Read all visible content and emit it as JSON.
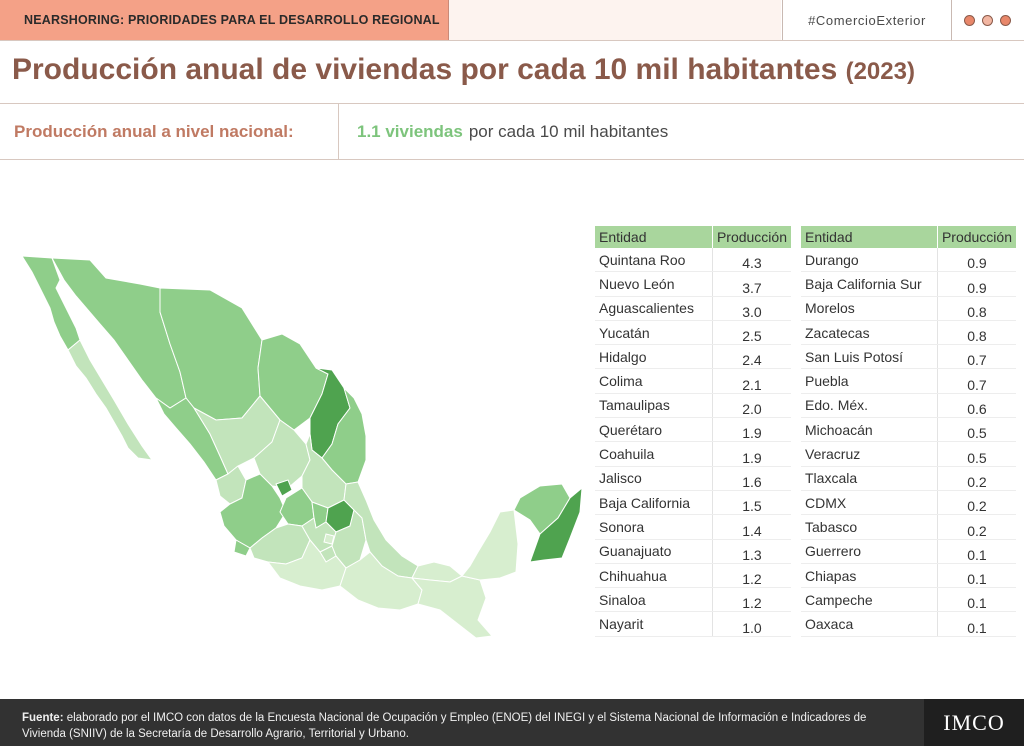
{
  "header": {
    "tag": "NEARSHORING: PRIORIDADES PARA EL DESARROLLO REGIONAL",
    "hashtag": "#ComercioExterior",
    "dots": [
      {
        "name": "dot-1",
        "color": "#e8876a"
      },
      {
        "name": "dot-2",
        "color": "#f2b6a2"
      },
      {
        "name": "dot-3",
        "color": "#e8876a"
      }
    ]
  },
  "title": {
    "main": "Producción anual de viviendas por cada 10 mil habitantes",
    "year": "(2023)"
  },
  "national": {
    "label": "Producción anual a nivel nacional:",
    "value": "1.1 viviendas",
    "unit": "por cada 10 mil habitantes"
  },
  "colors": {
    "header_accent": "#f4a187",
    "title": "#8a5a4a",
    "national_label": "#c07a63",
    "national_value": "#7dc47c",
    "table_header": "#a9d69d",
    "map_dark": "#4fa34f",
    "map_mid": "#8fce8a",
    "map_light": "#c2e4bb",
    "map_pale": "#d7eecf",
    "footer_bg": "#323232"
  },
  "chart_data": {
    "type": "table",
    "columns": [
      "Entidad",
      "Producción"
    ],
    "rows": [
      [
        "Quintana Roo",
        4.3
      ],
      [
        "Nuevo León",
        3.7
      ],
      [
        "Aguascalientes",
        3.0
      ],
      [
        "Yucatán",
        2.5
      ],
      [
        "Hidalgo",
        2.4
      ],
      [
        "Colima",
        2.1
      ],
      [
        "Tamaulipas",
        2.0
      ],
      [
        "Querétaro",
        1.9
      ],
      [
        "Coahuila",
        1.9
      ],
      [
        "Jalisco",
        1.6
      ],
      [
        "Baja California",
        1.5
      ],
      [
        "Sonora",
        1.4
      ],
      [
        "Guanajuato",
        1.3
      ],
      [
        "Chihuahua",
        1.2
      ],
      [
        "Sinaloa",
        1.2
      ],
      [
        "Nayarit",
        1.0
      ],
      [
        "Durango",
        0.9
      ],
      [
        "Baja California Sur",
        0.9
      ],
      [
        "Morelos",
        0.8
      ],
      [
        "Zacatecas",
        0.8
      ],
      [
        "San Luis Potosí",
        0.7
      ],
      [
        "Puebla",
        0.7
      ],
      [
        "Edo. Méx.",
        0.6
      ],
      [
        "Michoacán",
        0.5
      ],
      [
        "Veracruz",
        0.5
      ],
      [
        "Tlaxcala",
        0.2
      ],
      [
        "CDMX",
        0.2
      ],
      [
        "Tabasco",
        0.2
      ],
      [
        "Guerrero",
        0.1
      ],
      [
        "Chiapas",
        0.1
      ],
      [
        "Campeche",
        0.1
      ],
      [
        "Oaxaca",
        0.1
      ]
    ]
  },
  "footer": {
    "source_label": "Fuente:",
    "source_text": "elaborado por el IMCO con datos de la Encuesta Nacional de Ocupación y Empleo (ENOE) del INEGI y el Sistema Nacional de Información e Indicadores de Vivienda (SNIIV) de la Secretaría de Desarrollo Agrario, Territorial y Urbano.",
    "logo": "IMCO"
  }
}
